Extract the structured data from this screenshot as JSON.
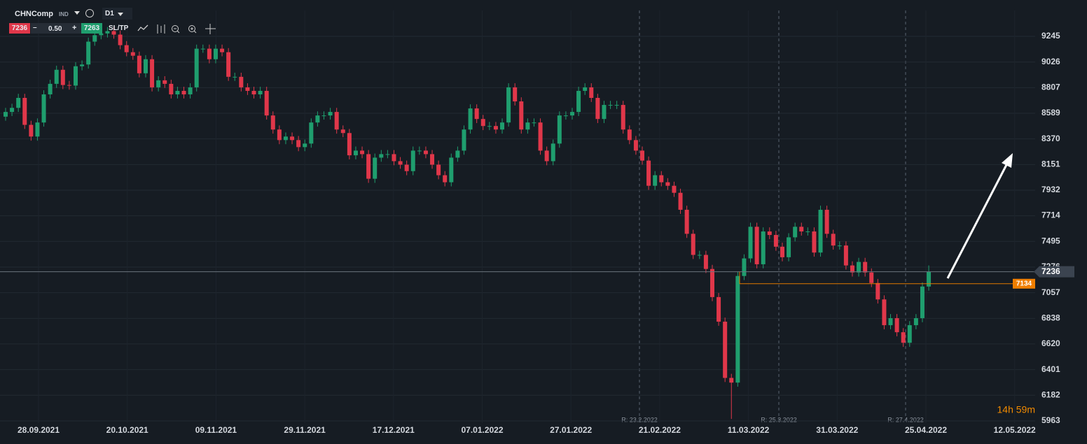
{
  "toolbar": {
    "symbol": "CHNComp",
    "market": "IND",
    "timeframe": "D1",
    "bid": "7236",
    "minus": "–",
    "lot": "0.50",
    "plus": "+",
    "ask": "7263",
    "sltp": "SL/TP"
  },
  "chart_data": {
    "type": "candlestick",
    "open": [
      8560,
      8600,
      8635,
      8720,
      8490,
      8390,
      8510,
      8750,
      8840,
      8960,
      8830,
      8825,
      8990,
      9005,
      9200,
      9255,
      9270,
      9290,
      9260,
      9170,
      9110,
      9080,
      8930,
      9050,
      8810,
      8870,
      8840,
      8750,
      8780,
      8750,
      8810,
      9140,
      9140,
      9050,
      9140,
      9110,
      8900,
      8900,
      8810,
      8780,
      8750,
      8780,
      8570,
      8450,
      8360,
      8390,
      8360,
      8300,
      8330,
      8510,
      8570,
      8570,
      8600,
      8450,
      8420,
      8230,
      8270,
      8240,
      8030,
      8210,
      8240,
      8240,
      8180,
      8150,
      8095,
      8270,
      8270,
      8240,
      8150,
      8060,
      8000,
      8210,
      8270,
      8450,
      8630,
      8540,
      8480,
      8480,
      8450,
      8510,
      8810,
      8690,
      8450,
      8510,
      8510,
      8270,
      8180,
      8330,
      8570,
      8570,
      8600,
      8780,
      8810,
      8720,
      8540,
      8660,
      8660,
      8660,
      8450,
      8360,
      8270,
      8185,
      7970,
      8060,
      8000,
      7970,
      7910,
      7765,
      7560,
      7380,
      7380,
      7260,
      7020,
      6810,
      6330,
      6290,
      7200,
      7350,
      7620,
      7300,
      7580,
      7550,
      7450,
      7360,
      7530,
      7620,
      7580,
      7580,
      7400,
      7765,
      7560,
      7460,
      7460,
      7290,
      7230,
      7320,
      7230,
      7140,
      7000,
      6780,
      6840,
      6720,
      6630,
      6780,
      6840,
      7110
    ],
    "high": [
      8635,
      8670,
      8755,
      8755,
      8525,
      8545,
      8785,
      8875,
      8995,
      8995,
      8865,
      9025,
      9040,
      9235,
      9290,
      9305,
      9325,
      9325,
      9295,
      9205,
      9145,
      9115,
      9085,
      9085,
      8905,
      8905,
      8875,
      8815,
      8815,
      8845,
      9175,
      9175,
      9175,
      9175,
      9175,
      9145,
      8935,
      8935,
      8845,
      8815,
      8815,
      8815,
      8605,
      8485,
      8425,
      8425,
      8395,
      8365,
      8545,
      8605,
      8605,
      8635,
      8635,
      8485,
      8455,
      8305,
      8305,
      8275,
      8245,
      8275,
      8275,
      8275,
      8215,
      8185,
      8305,
      8305,
      8305,
      8275,
      8185,
      8095,
      8245,
      8305,
      8485,
      8665,
      8665,
      8575,
      8515,
      8515,
      8545,
      8845,
      8845,
      8725,
      8545,
      8545,
      8545,
      8305,
      8365,
      8605,
      8605,
      8635,
      8815,
      8845,
      8845,
      8755,
      8695,
      8695,
      8695,
      8695,
      8485,
      8395,
      8305,
      8220,
      8095,
      8095,
      8035,
      8005,
      7945,
      7800,
      7595,
      7415,
      7415,
      7295,
      7055,
      6845,
      6365,
      7235,
      7385,
      7655,
      7655,
      7615,
      7615,
      7585,
      7485,
      7565,
      7655,
      7655,
      7615,
      7615,
      7800,
      7800,
      7595,
      7495,
      7495,
      7325,
      7355,
      7355,
      7265,
      7175,
      7035,
      6875,
      6875,
      6755,
      6815,
      6875,
      7145,
      7290
    ],
    "low": [
      8525,
      8565,
      8600,
      8455,
      8355,
      8355,
      8475,
      8715,
      8805,
      8795,
      8790,
      8790,
      8955,
      8970,
      9165,
      9220,
      9235,
      9225,
      9135,
      9075,
      9045,
      8895,
      8895,
      8775,
      8775,
      8805,
      8715,
      8715,
      8715,
      8715,
      8775,
      9105,
      9015,
      9015,
      9075,
      8865,
      8865,
      8775,
      8745,
      8715,
      8715,
      8535,
      8415,
      8325,
      8325,
      8325,
      8265,
      8265,
      8295,
      8475,
      8535,
      8535,
      8415,
      8385,
      8195,
      8195,
      8205,
      7995,
      7995,
      8175,
      8205,
      8145,
      8115,
      8060,
      8060,
      8235,
      8205,
      8115,
      8025,
      7965,
      7965,
      8175,
      8235,
      8415,
      8505,
      8445,
      8445,
      8415,
      8415,
      8475,
      8655,
      8415,
      8415,
      8475,
      8235,
      8145,
      8145,
      8295,
      8535,
      8535,
      8565,
      8745,
      8685,
      8505,
      8505,
      8625,
      8625,
      8415,
      8325,
      8235,
      8150,
      7935,
      7935,
      7965,
      7935,
      7875,
      7730,
      7525,
      7345,
      7345,
      7225,
      6985,
      6775,
      6295,
      5980,
      6255,
      7165,
      7315,
      7265,
      7265,
      7515,
      7415,
      7325,
      7325,
      7495,
      7545,
      7545,
      7365,
      7365,
      7525,
      7425,
      7425,
      7255,
      7195,
      7195,
      7195,
      7105,
      6965,
      6745,
      6745,
      6685,
      6595,
      6595,
      6745,
      6805,
      7075
    ],
    "close": [
      8600,
      8635,
      8720,
      8490,
      8390,
      8510,
      8750,
      8840,
      8960,
      8830,
      8825,
      8990,
      9005,
      9200,
      9255,
      9270,
      9290,
      9260,
      9170,
      9110,
      9080,
      8930,
      9050,
      8810,
      8870,
      8840,
      8750,
      8780,
      8750,
      8810,
      9140,
      9140,
      9050,
      9140,
      9110,
      8900,
      8900,
      8810,
      8780,
      8750,
      8780,
      8570,
      8450,
      8360,
      8390,
      8360,
      8300,
      8330,
      8510,
      8570,
      8570,
      8600,
      8450,
      8420,
      8230,
      8270,
      8240,
      8030,
      8210,
      8240,
      8240,
      8180,
      8150,
      8095,
      8270,
      8270,
      8240,
      8150,
      8060,
      8000,
      8210,
      8270,
      8450,
      8630,
      8540,
      8480,
      8480,
      8450,
      8510,
      8810,
      8690,
      8450,
      8510,
      8510,
      8270,
      8180,
      8330,
      8570,
      8570,
      8600,
      8780,
      8810,
      8720,
      8540,
      8660,
      8660,
      8660,
      8450,
      8360,
      8270,
      8185,
      7970,
      8060,
      8000,
      7970,
      7910,
      7765,
      7560,
      7380,
      7380,
      7260,
      7020,
      6810,
      6330,
      6290,
      7200,
      7350,
      7620,
      7300,
      7580,
      7550,
      7450,
      7360,
      7530,
      7620,
      7580,
      7580,
      7400,
      7765,
      7560,
      7460,
      7460,
      7290,
      7230,
      7320,
      7230,
      7140,
      7000,
      6780,
      6840,
      6720,
      6630,
      6780,
      6840,
      7110,
      7236
    ],
    "up_color": "#1f9e6e",
    "down_color": "#e0374a",
    "ylim": [
      5945,
      9466
    ],
    "yticks": [
      9245,
      9026,
      8807,
      8589,
      8370,
      8151,
      7932,
      7714,
      7495,
      7276,
      7057,
      6838,
      6620,
      6401,
      6182,
      5963
    ],
    "grid": true,
    "xlabels": [
      "28.09.2021",
      "20.10.2021",
      "09.11.2021",
      "29.11.2021",
      "17.12.2021",
      "07.01.2022",
      "27.01.2022",
      "21.02.2022",
      "11.03.2022",
      "31.03.2022",
      "25.04.2022",
      "12.05.2022"
    ],
    "current_price": 7236,
    "order_level": 7134,
    "markers": [
      "R: 23.2.2022",
      "R: 25.3.2022",
      "R: 27.4.2022"
    ],
    "timer": "14h 59m"
  }
}
